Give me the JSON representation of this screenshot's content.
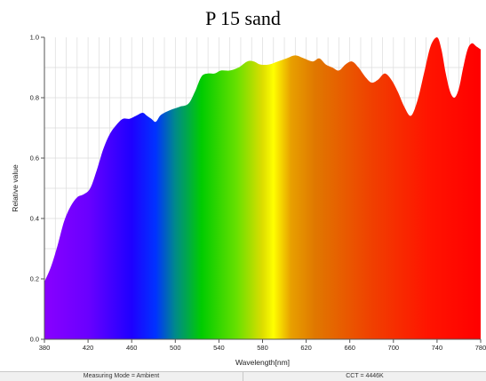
{
  "chart_data": {
    "type": "area",
    "title": "P 15 sand",
    "xlabel": "Wavelength[nm]",
    "ylabel": "Relative value",
    "xlim": [
      380,
      780
    ],
    "ylim": [
      0,
      1.0
    ],
    "x_ticks": [
      380,
      420,
      460,
      500,
      540,
      580,
      620,
      660,
      700,
      740,
      780
    ],
    "y_ticks": [
      0.0,
      0.2,
      0.4,
      0.6,
      0.8,
      1.0
    ],
    "grid": true,
    "fill": "visible-spectrum gradient",
    "x": [
      380,
      386,
      392,
      398,
      404,
      410,
      416,
      422,
      428,
      434,
      440,
      446,
      452,
      458,
      464,
      470,
      474,
      478,
      482,
      486,
      490,
      496,
      504,
      512,
      518,
      524,
      530,
      536,
      542,
      550,
      558,
      566,
      572,
      578,
      586,
      594,
      602,
      610,
      618,
      626,
      632,
      638,
      644,
      650,
      656,
      662,
      668,
      674,
      680,
      686,
      692,
      698,
      704,
      710,
      716,
      722,
      728,
      734,
      740,
      744,
      748,
      752,
      756,
      760,
      764,
      768,
      772,
      776,
      780
    ],
    "values": [
      0.19,
      0.24,
      0.31,
      0.39,
      0.44,
      0.47,
      0.48,
      0.5,
      0.56,
      0.63,
      0.68,
      0.71,
      0.73,
      0.73,
      0.74,
      0.75,
      0.74,
      0.73,
      0.72,
      0.74,
      0.75,
      0.76,
      0.77,
      0.78,
      0.82,
      0.87,
      0.88,
      0.88,
      0.89,
      0.89,
      0.9,
      0.92,
      0.92,
      0.91,
      0.91,
      0.92,
      0.93,
      0.94,
      0.93,
      0.92,
      0.93,
      0.91,
      0.9,
      0.89,
      0.91,
      0.92,
      0.9,
      0.87,
      0.85,
      0.86,
      0.88,
      0.86,
      0.82,
      0.77,
      0.74,
      0.79,
      0.88,
      0.97,
      1.0,
      0.96,
      0.88,
      0.82,
      0.8,
      0.83,
      0.9,
      0.96,
      0.98,
      0.97,
      0.96
    ]
  },
  "status_bar": {
    "measuring_mode": "Measuring Mode = Ambient",
    "cct": "CCT = 4446K"
  }
}
